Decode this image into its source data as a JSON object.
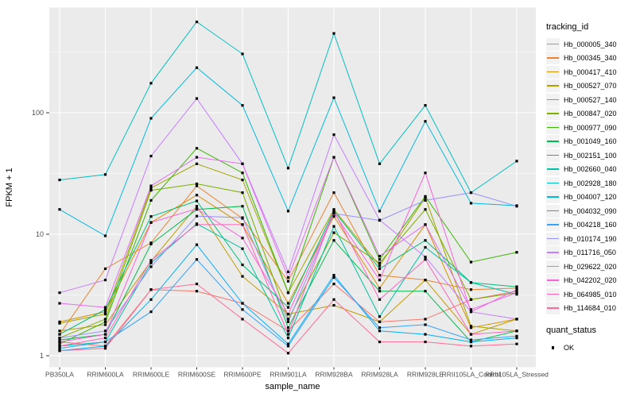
{
  "y_axis": {
    "title": "FPKM + 1",
    "tick_labels": [
      "1",
      "10",
      "100"
    ]
  },
  "x_axis": {
    "title": "sample_name"
  },
  "legend": {
    "tracking_title": "tracking_id",
    "quant_title": "quant_status",
    "quant_items": [
      {
        "label": "OK",
        "marker": "black-square"
      }
    ]
  },
  "colors": {
    "panel_bg": "#EBEBEB",
    "grid": "#FFFFFF",
    "tick_text": "#4D4D4D",
    "title_text": "#000000",
    "legend_key_bg": "#F2F2F2",
    "point": "#000000"
  },
  "chart_data": {
    "type": "line",
    "title": "",
    "xlabel": "sample_name",
    "ylabel": "FPKM + 1",
    "y_scale": "log10",
    "ylim": [
      0.85,
      730
    ],
    "y_ticks": [
      1,
      10,
      100
    ],
    "y_minor_gridlines": [
      3.162,
      31.62,
      316.2
    ],
    "grid": "on",
    "legend_position": "right",
    "point_marker": "small black square (quant_status = OK)",
    "categories": [
      "PB350LA",
      "RRIM600LA",
      "RRIM600LE",
      "RRIM600SE",
      "RRIM600PE",
      "RRIM901LA",
      "RRIM928BA",
      "RRIM928LA",
      "RRIM928LE",
      "RRII105LA_Control",
      "RRII105LA_Stressed"
    ],
    "series": [
      {
        "name": "Hb_000005_340",
        "color": "#F8766D",
        "values": [
          1.3,
          1.2,
          3.5,
          3.4,
          2.7,
          1.6,
          3.9,
          1.9,
          2.0,
          2.9,
          3.4
        ]
      },
      {
        "name": "Hb_000345_340",
        "color": "#EA8331",
        "values": [
          1.5,
          5.2,
          8.5,
          25,
          13.5,
          4.1,
          22,
          4.6,
          4.2,
          3.5,
          3.6
        ]
      },
      {
        "name": "Hb_000417_410",
        "color": "#D89000",
        "values": [
          1.9,
          2.3,
          12.5,
          21,
          12,
          2.7,
          14,
          3.6,
          12,
          1.7,
          2.0
        ]
      },
      {
        "name": "Hb_000527_070",
        "color": "#C09B00",
        "values": [
          1.6,
          1.8,
          6.0,
          17,
          4.5,
          2.2,
          2.6,
          1.9,
          4.2,
          1.5,
          2.0
        ]
      },
      {
        "name": "Hb_000527_140",
        "color": "#A3A500",
        "values": [
          1.85,
          2.2,
          24,
          38,
          28,
          3.3,
          16,
          5.5,
          20,
          1.75,
          1.6
        ]
      },
      {
        "name": "Hb_000847_020",
        "color": "#7CAE00",
        "values": [
          1.4,
          2.0,
          23,
          26,
          22,
          2.0,
          10.3,
          5.8,
          16,
          2.9,
          3.3
        ]
      },
      {
        "name": "Hb_000977_090",
        "color": "#39B600",
        "values": [
          1.25,
          1.9,
          19,
          51,
          32,
          3.3,
          43,
          6.2,
          20.5,
          5.9,
          7.1
        ]
      },
      {
        "name": "Hb_001049_160",
        "color": "#00BB4E",
        "values": [
          1.35,
          1.5,
          8.3,
          16,
          17,
          1.7,
          8.9,
          3.4,
          3.4,
          1.3,
          1.6
        ]
      },
      {
        "name": "Hb_002151_100",
        "color": "#00BF7D",
        "values": [
          1.5,
          2.4,
          14,
          18.8,
          5.6,
          2.5,
          15.6,
          5.2,
          8.9,
          4.0,
          3.7
        ]
      },
      {
        "name": "Hb_002660_040",
        "color": "#00C1A3",
        "values": [
          1.2,
          1.3,
          5.8,
          12.2,
          7.6,
          1.4,
          11.6,
          2.1,
          7.8,
          4.0,
          3.2
        ]
      },
      {
        "name": "Hb_002928_180",
        "color": "#00BFC4",
        "values": [
          28,
          31,
          175,
          560,
          305,
          35,
          450,
          38,
          115,
          22,
          40
        ]
      },
      {
        "name": "Hb_004007_120",
        "color": "#00BAE0",
        "values": [
          16,
          9.7,
          90,
          235,
          115,
          15.5,
          133,
          15.5,
          85,
          18,
          17.2
        ]
      },
      {
        "name": "Hb_004032_090",
        "color": "#00B0F6",
        "values": [
          1.1,
          1.2,
          2.9,
          8.2,
          2.7,
          1.25,
          4.6,
          1.6,
          1.5,
          1.3,
          1.4
        ]
      },
      {
        "name": "Hb_004218_160",
        "color": "#35A2FF",
        "values": [
          1.15,
          1.3,
          2.3,
          6.2,
          2.4,
          1.2,
          4.4,
          1.7,
          1.8,
          1.35,
          1.45
        ]
      },
      {
        "name": "Hb_010174_190",
        "color": "#9590FF",
        "values": [
          1.4,
          1.6,
          5.4,
          14.1,
          13.7,
          1.9,
          14.8,
          13,
          19,
          22,
          17
        ]
      },
      {
        "name": "Hb_011716_050",
        "color": "#C77CFF",
        "values": [
          3.3,
          4.2,
          44,
          131,
          38,
          4.9,
          66,
          13.1,
          6.5,
          2.3,
          2.0
        ]
      },
      {
        "name": "Hb_029622_020",
        "color": "#E76BF3",
        "values": [
          2.7,
          2.5,
          25,
          43,
          38,
          4.4,
          43,
          6.6,
          12,
          2.4,
          3.3
        ]
      },
      {
        "name": "Hb_042202_020",
        "color": "#FA62DB",
        "values": [
          1.3,
          1.5,
          12.5,
          16.2,
          9.3,
          2.2,
          15,
          4.2,
          32,
          2.3,
          3.5
        ]
      },
      {
        "name": "Hb_064985_010",
        "color": "#FF62BC",
        "values": [
          1.2,
          1.4,
          6.1,
          12,
          12,
          1.5,
          15.6,
          2.9,
          6.2,
          1.5,
          1.6
        ]
      },
      {
        "name": "Hb_114684_010",
        "color": "#FF6A98",
        "values": [
          1.1,
          1.15,
          3.5,
          3.9,
          2.0,
          1.05,
          2.9,
          1.3,
          1.3,
          1.2,
          1.25
        ]
      }
    ]
  }
}
